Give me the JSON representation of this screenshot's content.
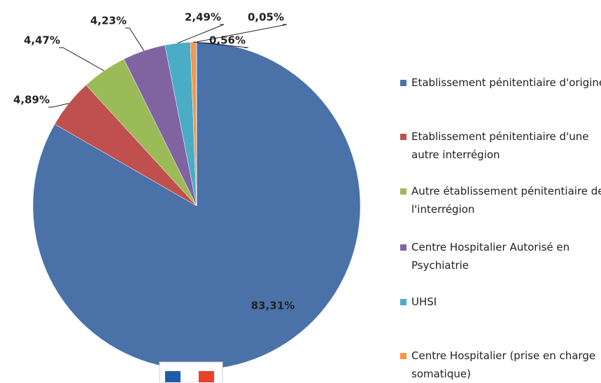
{
  "chart_data": {
    "type": "pie",
    "categories": [
      "Etablissement pénitentiaire d'origine",
      "Etablissement pénitentiaire d'une autre interrégion",
      "Autre établissement pénitentiaire de l'interrégion",
      "Centre Hospitalier Autorisé en Psychiatrie",
      "UHSI",
      "Centre Hospitalier (prise en charge somatique)",
      null
    ],
    "values": [
      83.31,
      4.89,
      4.47,
      4.23,
      2.49,
      0.56,
      0.05
    ],
    "value_labels": [
      "83,31%",
      "4,89%",
      "4,47%",
      "4,23%",
      "2,49%",
      "0,56%",
      "0,05%"
    ],
    "colors": [
      "#4a72a8",
      "#c0504d",
      "#9bbb59",
      "#8064a2",
      "#4bacc6",
      "#f79646",
      "#2c4d75"
    ],
    "legend": "right"
  }
}
